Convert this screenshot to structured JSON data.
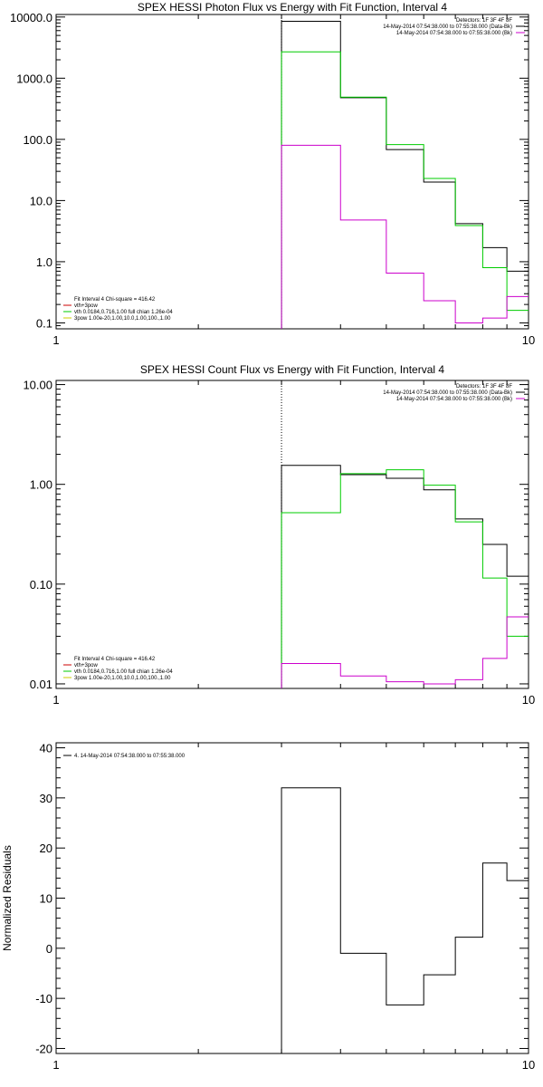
{
  "chart_data": [
    {
      "type": "line",
      "title": "SPEX HESSI Photon Flux vs Energy with Fit Function, Interval 4",
      "xscale": "log",
      "yscale": "log",
      "xlim": [
        1,
        10
      ],
      "ylim": [
        0.08,
        11000
      ],
      "x_ticks": [
        "1",
        "10"
      ],
      "y_ticks": [
        "0.1",
        "1.0",
        "10.0",
        "100.0",
        "1000.0",
        "10000.0"
      ],
      "y_tick_values": [
        0.1,
        1,
        10,
        100,
        1000,
        10000
      ],
      "vline_x": 3,
      "edges": [
        3,
        4,
        5,
        6,
        7,
        8,
        9,
        10
      ],
      "series": [
        {
          "color": "#000000",
          "values": [
            8500,
            480,
            68,
            20,
            4.2,
            1.7,
            0.7
          ]
        },
        {
          "color": "#00cc00",
          "values": [
            2700,
            490,
            82,
            23,
            3.9,
            0.8,
            0.16
          ]
        },
        {
          "color": "#cc00cc",
          "values": [
            80,
            4.8,
            0.65,
            0.23,
            0.1,
            0.12,
            0.27
          ]
        }
      ],
      "legend_tr": [
        {
          "text": "Detectors: 1F 3F 4F 8F",
          "color": "#000000",
          "swatch": false
        },
        {
          "text": "14-May-2014 07:54:38.000 to 07:55:38.000 (Data-Bk)",
          "color": "#000000",
          "swatch": true
        },
        {
          "text": "14-May-2014 07:54:38.000 to 07:55:38.000 (Bk)",
          "color": "#cc00cc",
          "swatch": true
        }
      ],
      "legend_bl": [
        {
          "text": "Fit Interval  4    Chi-square = 416.42",
          "color": "#000000",
          "swatch": false
        },
        {
          "text": "vth+3pow",
          "color": "#cc0000",
          "swatch": true
        },
        {
          "text": "vth 0.0184,0.716,1.00   full chian 1.26e-04",
          "color": "#00cc00",
          "swatch": true
        },
        {
          "text": "3pow 1.00e-20,1.00,10.0,1.00,100.,1.00",
          "color": "#cccc00",
          "swatch": true
        }
      ]
    },
    {
      "type": "line",
      "title": "SPEX HESSI Count Flux vs Energy with Fit Function, Interval 4",
      "xscale": "log",
      "yscale": "log",
      "xlim": [
        1,
        10
      ],
      "ylim": [
        0.009,
        11
      ],
      "x_ticks": [
        "1",
        "10"
      ],
      "y_ticks": [
        "0.01",
        "0.10",
        "1.00",
        "10.00"
      ],
      "y_tick_values": [
        0.01,
        0.1,
        1,
        10
      ],
      "vline_x": 3,
      "edges": [
        3,
        4,
        5,
        6,
        7,
        8,
        9,
        10
      ],
      "series": [
        {
          "color": "#000000",
          "values": [
            1.55,
            1.25,
            1.15,
            0.88,
            0.45,
            0.25,
            0.12
          ]
        },
        {
          "color": "#00cc00",
          "values": [
            0.52,
            1.28,
            1.4,
            0.98,
            0.42,
            0.115,
            0.03
          ]
        },
        {
          "color": "#cc00cc",
          "values": [
            0.016,
            0.012,
            0.0105,
            0.01,
            0.011,
            0.018,
            0.047
          ]
        }
      ],
      "legend_tr": [
        {
          "text": "Detectors: 1F 3F 4F 8F",
          "color": "#000000",
          "swatch": false
        },
        {
          "text": "14-May-2014 07:54:38.000 to 07:55:38.000 (Data-Bk)",
          "color": "#000000",
          "swatch": true
        },
        {
          "text": "14-May-2014 07:54:38.000 to 07:55:38.000 (Bk)",
          "color": "#cc00cc",
          "swatch": true
        }
      ],
      "legend_bl": [
        {
          "text": "Fit Interval  4    Chi-square = 416.42",
          "color": "#000000",
          "swatch": false
        },
        {
          "text": "vth+3pow",
          "color": "#cc0000",
          "swatch": true
        },
        {
          "text": "vth 0.0184,0.716,1.00   full chian 1.26e-04",
          "color": "#00cc00",
          "swatch": true
        },
        {
          "text": "3pow 1.00e-20,1.00,10.0,1.00,100.,1.00",
          "color": "#cccc00",
          "swatch": true
        }
      ]
    },
    {
      "type": "line",
      "title": "",
      "ylabel": "Normalized Residuals",
      "xscale": "log",
      "yscale": "linear",
      "xlim": [
        1,
        10
      ],
      "ylim": [
        -21,
        41
      ],
      "x_ticks": [
        "1",
        "10"
      ],
      "y_ticks": [
        "-20",
        "-10",
        "0",
        "10",
        "20",
        "30",
        "40"
      ],
      "y_tick_values": [
        -20,
        -10,
        0,
        10,
        20,
        30,
        40
      ],
      "edges": [
        3,
        4,
        5,
        6,
        7,
        8,
        9,
        10
      ],
      "series": [
        {
          "color": "#000000",
          "values": [
            32,
            -1,
            -11.3,
            -5.3,
            2.2,
            17,
            13.5
          ]
        }
      ],
      "legend_tl": [
        {
          "text": "4. 14-May-2014 07:54:38.000 to 07:55:38.000",
          "color": "#000000",
          "swatch": true
        }
      ]
    }
  ]
}
